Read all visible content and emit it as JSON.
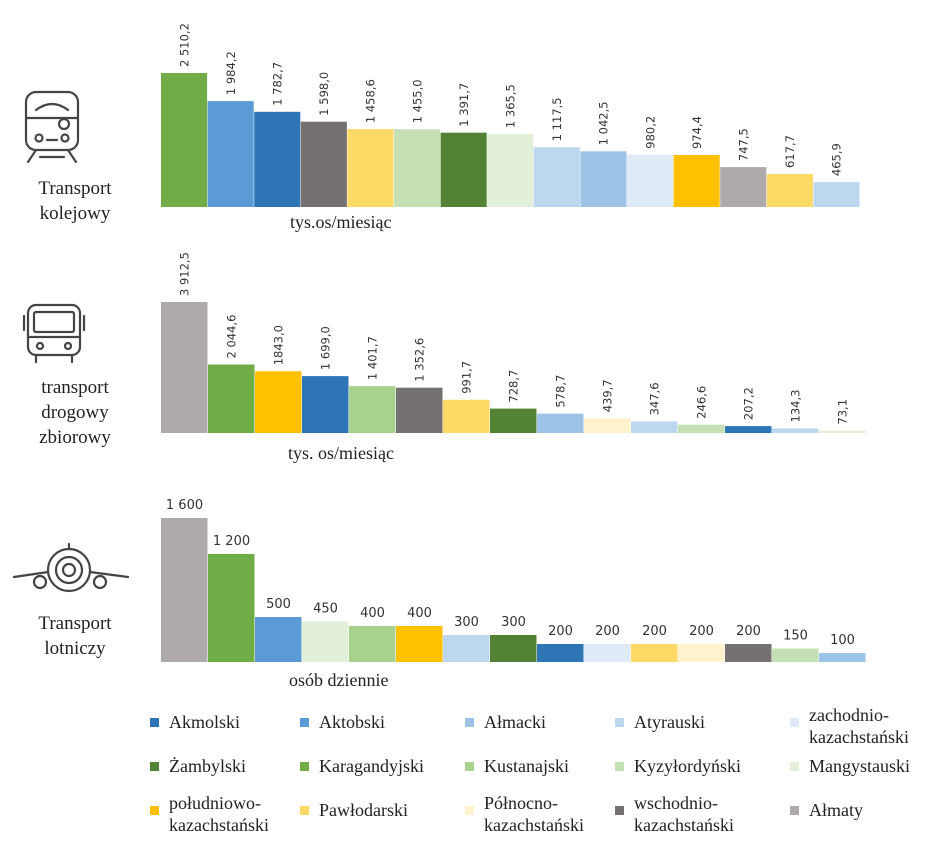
{
  "colors": {
    "Akmolski": "#2e75b6",
    "Aktobski": "#5b9bd5",
    "Ałmacki": "#9dc3e6",
    "Atyrauski": "#bdd7ee",
    "zachodnio-kazachstański": "#deebf7",
    "Żambylski": "#548235",
    "Karagandyjski": "#70ad47",
    "Kustanajski": "#a9d18e",
    "Kyzyłordyński": "#c5e0b4",
    "Mangystauski": "#e2f0d9",
    "południowo-kazachstański": "#ffc000",
    "Pawłodarski": "#ffd966",
    "Północno-kazachstański": "#fff2cc",
    "wschodnio-kazachstański": "#767171",
    "Ałmaty": "#aeaaaa"
  },
  "panels": [
    {
      "label_lines": [
        "Transport",
        "kolejowy"
      ],
      "icon": "train-icon"
    },
    {
      "label_lines": [
        "transport",
        "drogowy",
        "zbiorowy"
      ],
      "icon": "bus-icon"
    },
    {
      "label_lines": [
        "Transport",
        "lotniczy"
      ],
      "icon": "airplane-icon"
    }
  ],
  "chart_data": [
    {
      "type": "bar",
      "unit_label": "tys.os/miesiąc",
      "value_labels": [
        "2 510,2",
        "1 984,2",
        "1 782,7",
        "1 598,0",
        "1 458,6",
        "1 455,0",
        "1 391,7",
        "1 365,5",
        "1 117,5",
        "1 042,5",
        "980,2",
        "974,4",
        "747,5",
        "617,7",
        "465,9"
      ],
      "values": [
        2510.2,
        1984.2,
        1782.7,
        1598.0,
        1458.6,
        1455.0,
        1391.7,
        1365.5,
        1117.5,
        1042.5,
        980.2,
        974.4,
        747.5,
        617.7,
        465.9
      ],
      "categories": [
        "Karagandyjski",
        "Aktobski",
        "Akmolski",
        "wschodnio-kazachstański",
        "Pawłodarski",
        "Kyzyłordyński",
        "Żambylski",
        "Mangystauski",
        "Atyrauski",
        "Ałmacki",
        "zachodnio-kazachstański",
        "południowo-kazachstański",
        "Ałmaty",
        "Pawłodarski",
        "Atyrauski"
      ],
      "label_orientation": "vertical",
      "ylim": [
        0,
        2600
      ]
    },
    {
      "type": "bar",
      "unit_label": "tys. os/miesiąc",
      "value_labels": [
        "3 912,5",
        "2 044,6",
        "1843,0",
        "1 699,0",
        "1 401,7",
        "1 352,6",
        "991,7",
        "728,7",
        "578,7",
        "439,7",
        "347,6",
        "246,6",
        "207,2",
        "134,3",
        "73,1"
      ],
      "values": [
        3912.5,
        2044.6,
        1843.0,
        1699.0,
        1401.7,
        1352.6,
        991.7,
        728.7,
        578.7,
        439.7,
        347.6,
        246.6,
        207.2,
        134.3,
        73.1
      ],
      "categories": [
        "Ałmaty",
        "Karagandyjski",
        "południowo-kazachstański",
        "Akmolski",
        "Kustanajski",
        "wschodnio-kazachstański",
        "Pawłodarski",
        "Żambylski",
        "Ałmacki",
        "Północno-kazachstański",
        "Atyrauski",
        "Kyzyłordyński",
        "Akmolski",
        "Atyrauski",
        "Mangystauski"
      ],
      "label_orientation": "vertical",
      "ylim": [
        0,
        3950
      ]
    },
    {
      "type": "bar",
      "unit_label": "osób dziennie",
      "value_labels": [
        "1 600",
        "1 200",
        "500",
        "450",
        "400",
        "400",
        "300",
        "300",
        "200",
        "200",
        "200",
        "200",
        "200",
        "150",
        "100"
      ],
      "values": [
        1600,
        1200,
        500,
        450,
        400,
        400,
        300,
        300,
        200,
        200,
        200,
        200,
        200,
        150,
        100
      ],
      "categories": [
        "Ałmaty",
        "Karagandyjski",
        "Aktobski",
        "Mangystauski",
        "Kustanajski",
        "południowo-kazachstański",
        "Atyrauski",
        "Żambylski",
        "Akmolski",
        "zachodnio-kazachstański",
        "Pawłodarski",
        "Północno-kazachstański",
        "wschodnio-kazachstański",
        "Kyzyłordyński",
        "Ałmacki"
      ],
      "label_orientation": "horizontal",
      "ylim": [
        0,
        1620
      ]
    }
  ],
  "legend": [
    {
      "key": "Akmolski",
      "lines": [
        "Akmolski"
      ]
    },
    {
      "key": "Aktobski",
      "lines": [
        "Aktobski"
      ]
    },
    {
      "key": "Ałmacki",
      "lines": [
        "Ałmacki"
      ]
    },
    {
      "key": "Atyrauski",
      "lines": [
        "Atyrauski"
      ]
    },
    {
      "key": "zachodnio-kazachstański",
      "lines": [
        "zachodnio-",
        "kazachstański"
      ]
    },
    {
      "key": "Żambylski",
      "lines": [
        "Żambylski"
      ]
    },
    {
      "key": "Karagandyjski",
      "lines": [
        "Karagandyjski"
      ]
    },
    {
      "key": "Kustanajski",
      "lines": [
        "Kustanajski"
      ]
    },
    {
      "key": "Kyzyłordyński",
      "lines": [
        "Kyzyłordyński"
      ]
    },
    {
      "key": "Mangystauski",
      "lines": [
        "Mangystauski"
      ]
    },
    {
      "key": "południowo-kazachstański",
      "lines": [
        "południowo-",
        "kazachstański"
      ]
    },
    {
      "key": "Pawłodarski",
      "lines": [
        "Pawłodarski"
      ]
    },
    {
      "key": "Północno-kazachstański",
      "lines": [
        "Północno-",
        "kazachstański"
      ]
    },
    {
      "key": "wschodnio-kazachstański",
      "lines": [
        "wschodnio-",
        "kazachstański"
      ]
    },
    {
      "key": "Ałmaty",
      "lines": [
        "Ałmaty"
      ]
    }
  ]
}
